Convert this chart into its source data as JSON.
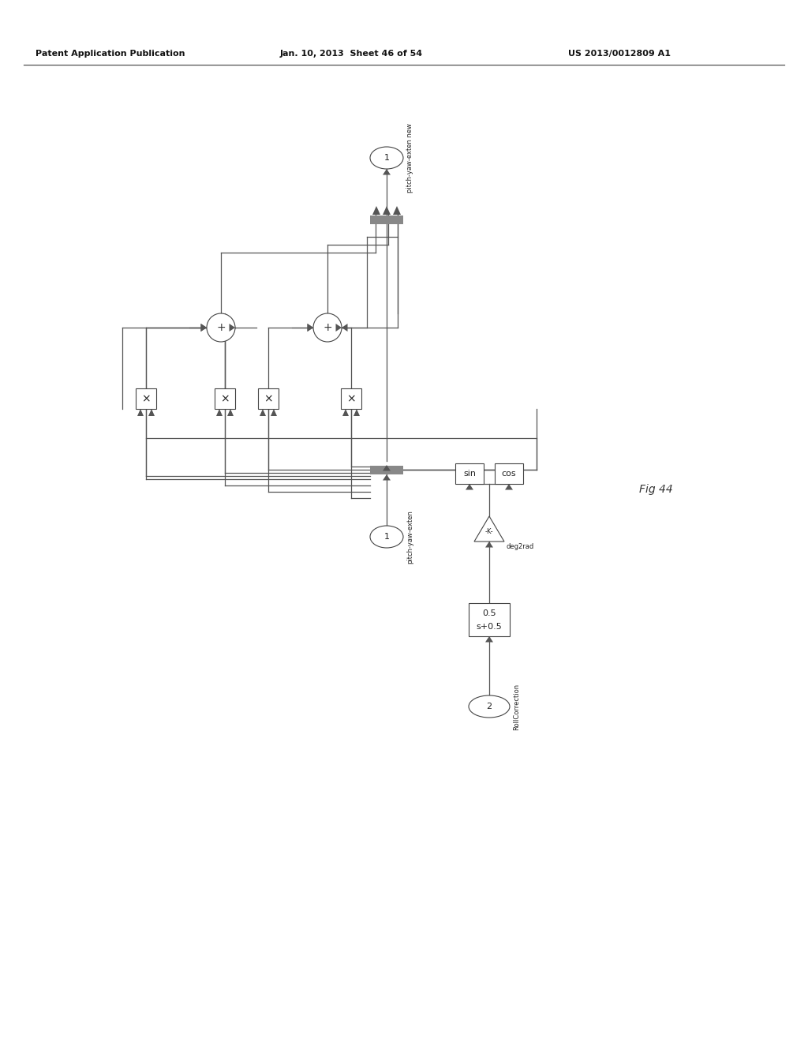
{
  "header_left": "Patent Application Publication",
  "header_mid": "Jan. 10, 2013  Sheet 46 of 54",
  "header_right": "US 2013/0012809 A1",
  "fig_label": "Fig 44",
  "output_label": "1",
  "output_text": "pitch-yaw-exten new",
  "input_label": "1",
  "input_text": "pitch-yaw-exten",
  "roll_label": "2",
  "roll_text": "RollCorrection",
  "filter_top": "0.5",
  "filter_bot": "s+0.5",
  "gain_label": "-K-",
  "gain_sub": "deg2rad",
  "sin_label": "sin",
  "cos_label": "cos",
  "lc": "#555555",
  "dark": "#888888",
  "bg": "#ffffff"
}
